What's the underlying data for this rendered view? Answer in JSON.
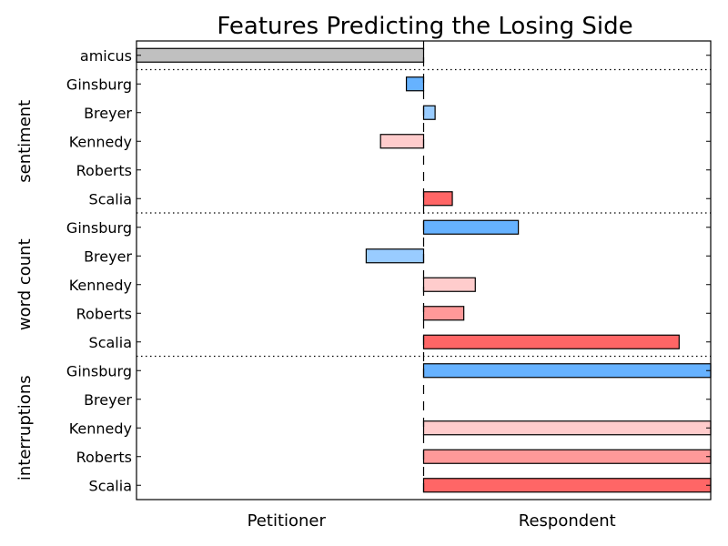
{
  "chart_data": {
    "type": "bar",
    "orientation": "horizontal",
    "title": "Features Predicting the Losing Side",
    "x_categories": [
      "Petitioner",
      "Respondent"
    ],
    "xlim": [
      -1,
      1
    ],
    "center": 0,
    "grid": false,
    "colors": {
      "amicus": "#c0c0c0",
      "Ginsburg": "#66b2ff",
      "Breyer": "#99ccff",
      "Kennedy": "#ffcccc",
      "Roberts": "#ff9999",
      "Scalia": "#ff6666"
    },
    "rows": [
      {
        "label": "amicus",
        "group": "",
        "value": -1.0
      },
      {
        "label": "Ginsburg",
        "group": "sentiment",
        "value": -0.06
      },
      {
        "label": "Breyer",
        "group": "sentiment",
        "value": 0.04
      },
      {
        "label": "Kennedy",
        "group": "sentiment",
        "value": -0.15
      },
      {
        "label": "Roberts",
        "group": "sentiment",
        "value": 0.0
      },
      {
        "label": "Scalia",
        "group": "sentiment",
        "value": 0.1
      },
      {
        "label": "Ginsburg",
        "group": "word count",
        "value": 0.33
      },
      {
        "label": "Breyer",
        "group": "word count",
        "value": -0.2
      },
      {
        "label": "Kennedy",
        "group": "word count",
        "value": 0.18
      },
      {
        "label": "Roberts",
        "group": "word count",
        "value": 0.14
      },
      {
        "label": "Scalia",
        "group": "word count",
        "value": 0.89
      },
      {
        "label": "Ginsburg",
        "group": "interruptions",
        "value": 1.0
      },
      {
        "label": "Breyer",
        "group": "interruptions",
        "value": 0.0
      },
      {
        "label": "Kennedy",
        "group": "interruptions",
        "value": 1.0
      },
      {
        "label": "Roberts",
        "group": "interruptions",
        "value": 1.0
      },
      {
        "label": "Scalia",
        "group": "interruptions",
        "value": 1.0
      }
    ],
    "groups": [
      "sentiment",
      "word count",
      "interruptions"
    ]
  }
}
